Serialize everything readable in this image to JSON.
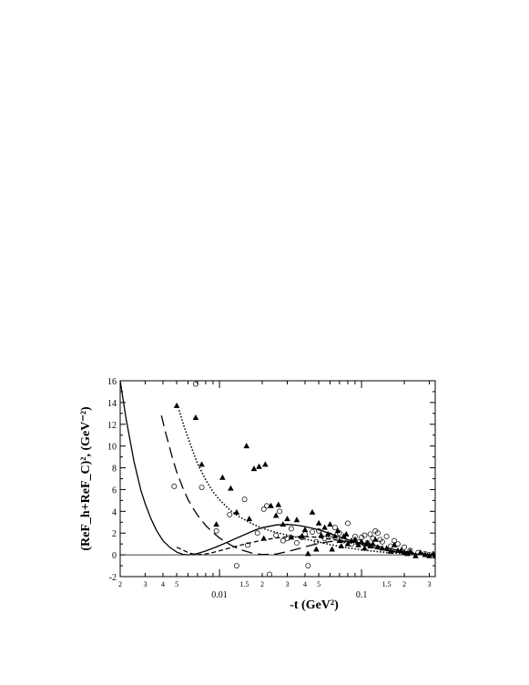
{
  "chart_data": {
    "type": "scatter",
    "xlabel": "-t (GeV²)",
    "ylabel": "(ReF_h+ReF_C)², (GeV⁻²)",
    "xscale": "log",
    "xlim": [
      0.002,
      0.33
    ],
    "ylim": [
      -2,
      16
    ],
    "y_ticks": [
      -2,
      0,
      2,
      4,
      6,
      8,
      10,
      12,
      14,
      16
    ],
    "x_major_ticks": [
      {
        "value": 0.01,
        "label": "0.01"
      },
      {
        "value": 0.1,
        "label": "0.1"
      }
    ],
    "x_minor_ticks": [
      {
        "value": 0.002,
        "label": "2"
      },
      {
        "value": 0.003,
        "label": "3"
      },
      {
        "value": 0.004,
        "label": "4"
      },
      {
        "value": 0.005,
        "label": "5"
      },
      {
        "value": 0.015,
        "label": "1.5"
      },
      {
        "value": 0.02,
        "label": "2"
      },
      {
        "value": 0.03,
        "label": "3"
      },
      {
        "value": 0.04,
        "label": "4"
      },
      {
        "value": 0.05,
        "label": "5"
      },
      {
        "value": 0.15,
        "label": "1.5"
      },
      {
        "value": 0.2,
        "label": "2"
      },
      {
        "value": 0.3,
        "label": "3"
      }
    ],
    "zero_line": true,
    "series": [
      {
        "style": "solid-line",
        "x": [
          0.002,
          0.0022,
          0.0025,
          0.0028,
          0.003,
          0.0033,
          0.0036,
          0.004,
          0.0045,
          0.005,
          0.0055,
          0.006,
          0.0065,
          0.007,
          0.008,
          0.009,
          0.01,
          0.012,
          0.015,
          0.018,
          0.02,
          0.025,
          0.03,
          0.035,
          0.04,
          0.05,
          0.06,
          0.07,
          0.08,
          0.1,
          0.12,
          0.15,
          0.2,
          0.25,
          0.3,
          0.33
        ],
        "y": [
          16,
          12.5,
          8.6,
          5.9,
          4.7,
          3.3,
          2.25,
          1.3,
          0.65,
          0.25,
          0.05,
          0,
          0.04,
          0.13,
          0.35,
          0.6,
          0.85,
          1.3,
          1.85,
          2.3,
          2.5,
          2.75,
          2.8,
          2.72,
          2.6,
          2.3,
          1.95,
          1.65,
          1.4,
          0.98,
          0.7,
          0.4,
          0.15,
          0.05,
          0.01,
          0
        ]
      },
      {
        "style": "long-dash-line",
        "x": [
          0.0039,
          0.0042,
          0.0046,
          0.005,
          0.0055,
          0.006,
          0.0065,
          0.007,
          0.008,
          0.009,
          0.01,
          0.012,
          0.014,
          0.017,
          0.02,
          0.025,
          0.03,
          0.035,
          0.04,
          0.05,
          0.06,
          0.07,
          0.08,
          0.1,
          0.12,
          0.15,
          0.2,
          0.25,
          0.3,
          0.33
        ],
        "y": [
          12.8,
          11.1,
          9.2,
          7.6,
          6.2,
          5.1,
          4.3,
          3.65,
          2.7,
          2.05,
          1.55,
          0.9,
          0.48,
          0.15,
          0.03,
          0.08,
          0.3,
          0.52,
          0.75,
          1.05,
          1.22,
          1.28,
          1.25,
          1.1,
          0.9,
          0.62,
          0.32,
          0.14,
          0.04,
          0
        ]
      },
      {
        "style": "dotted-line",
        "x": [
          0.0052,
          0.0056,
          0.006,
          0.0065,
          0.007,
          0.008,
          0.009,
          0.01,
          0.012,
          0.014,
          0.017,
          0.02,
          0.025,
          0.03,
          0.035,
          0.04,
          0.05,
          0.06,
          0.07,
          0.08,
          0.1,
          0.12,
          0.15,
          0.2,
          0.25,
          0.3,
          0.33
        ],
        "y": [
          13.3,
          11.9,
          10.8,
          9.5,
          8.4,
          6.9,
          5.8,
          5.05,
          4.05,
          3.45,
          2.85,
          2.45,
          2.05,
          1.82,
          1.62,
          1.46,
          1.18,
          0.95,
          0.78,
          0.64,
          0.46,
          0.34,
          0.22,
          0.1,
          0.04,
          0.01,
          0
        ]
      },
      {
        "style": "short-dash-line",
        "x": [
          0.005,
          0.0055,
          0.006,
          0.0065,
          0.007,
          0.008,
          0.009,
          0.01,
          0.012,
          0.015,
          0.018,
          0.02,
          0.025,
          0.03,
          0.04,
          0.05,
          0.06,
          0.07,
          0.08,
          0.1,
          0.12,
          0.15,
          0.2,
          0.25,
          0.3,
          0.33
        ],
        "y": [
          0.7,
          0.45,
          0.22,
          0.08,
          0.02,
          0.08,
          0.22,
          0.38,
          0.65,
          0.98,
          1.22,
          1.35,
          1.55,
          1.65,
          1.68,
          1.6,
          1.45,
          1.3,
          1.15,
          0.9,
          0.7,
          0.45,
          0.2,
          0.08,
          0.02,
          0
        ]
      },
      {
        "style": "filled-triangles",
        "x": [
          0.005,
          0.0068,
          0.0075,
          0.0095,
          0.0105,
          0.012,
          0.0132,
          0.0155,
          0.0162,
          0.0175,
          0.019,
          0.0205,
          0.021,
          0.023,
          0.025,
          0.026,
          0.028,
          0.03,
          0.032,
          0.035,
          0.038,
          0.04,
          0.042,
          0.045,
          0.048,
          0.05,
          0.052,
          0.055,
          0.058,
          0.06,
          0.062,
          0.065,
          0.068,
          0.07,
          0.072,
          0.075,
          0.078,
          0.08,
          0.085,
          0.09,
          0.095,
          0.1,
          0.105,
          0.11,
          0.115,
          0.12,
          0.125,
          0.13,
          0.14,
          0.15,
          0.16,
          0.17,
          0.18,
          0.19,
          0.2,
          0.21,
          0.22,
          0.24,
          0.26,
          0.28,
          0.3,
          0.32,
          0.33
        ],
        "y": [
          13.7,
          12.6,
          8.3,
          2.8,
          7.1,
          6.1,
          3.9,
          10.0,
          3.3,
          7.9,
          8.1,
          1.5,
          8.3,
          4.5,
          3.6,
          4.6,
          2.8,
          3.3,
          1.6,
          3.2,
          1.7,
          2.3,
          0.1,
          3.9,
          0.5,
          2.9,
          1.8,
          2.5,
          1.9,
          2.8,
          0.5,
          1.7,
          2.2,
          1.3,
          0.8,
          1.7,
          1.9,
          1.0,
          1.3,
          1.4,
          0.9,
          1.2,
          0.6,
          1.1,
          0.8,
          1.0,
          1.4,
          0.7,
          0.6,
          0.6,
          0.3,
          0.9,
          0.4,
          0.4,
          0.2,
          0.1,
          0.3,
          -0.1,
          0.2,
          0,
          -0.1,
          0.1,
          -0.1
        ]
      },
      {
        "style": "open-circles",
        "x": [
          0.0048,
          0.0068,
          0.0075,
          0.0095,
          0.0118,
          0.0132,
          0.015,
          0.0158,
          0.0185,
          0.0205,
          0.0215,
          0.0225,
          0.025,
          0.0265,
          0.028,
          0.03,
          0.032,
          0.035,
          0.038,
          0.04,
          0.042,
          0.045,
          0.048,
          0.05,
          0.055,
          0.06,
          0.065,
          0.07,
          0.075,
          0.08,
          0.085,
          0.09,
          0.095,
          0.1,
          0.105,
          0.11,
          0.115,
          0.12,
          0.125,
          0.13,
          0.135,
          0.14,
          0.15,
          0.16,
          0.17,
          0.18,
          0.2,
          0.22,
          0.25,
          0.28,
          0.3,
          0.33
        ],
        "y": [
          6.3,
          15.7,
          6.2,
          2.2,
          3.7,
          -1.0,
          5.1,
          0.9,
          2.0,
          4.2,
          4.5,
          -1.8,
          1.8,
          4.0,
          1.3,
          1.5,
          2.4,
          1.1,
          1.6,
          1.9,
          -1.0,
          2.1,
          1.2,
          2.2,
          1.5,
          1.8,
          2.5,
          2.0,
          1.3,
          2.9,
          1.0,
          1.7,
          1.2,
          1.6,
          1.8,
          1.1,
          1.9,
          1.5,
          2.2,
          2.0,
          1.4,
          1.2,
          1.7,
          0.8,
          1.3,
          1.0,
          0.7,
          0.4,
          0.2,
          0.1,
          0,
          -0.1
        ]
      }
    ]
  }
}
